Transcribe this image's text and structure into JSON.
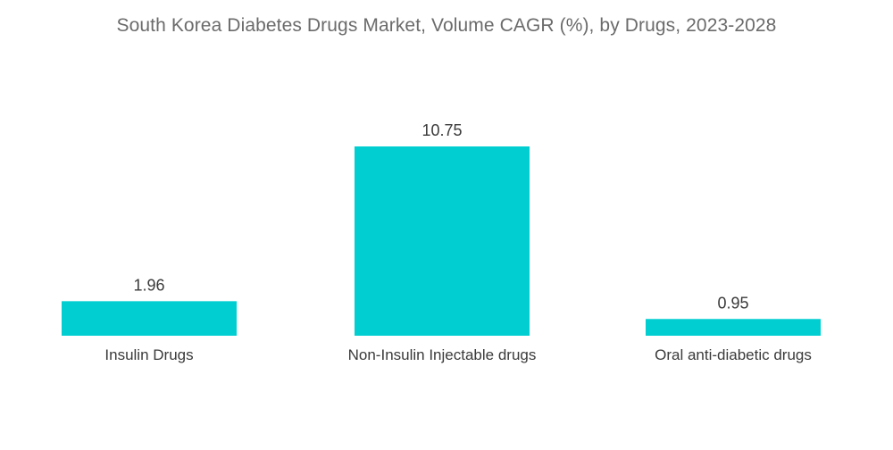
{
  "chart_data": {
    "type": "bar",
    "title": "South Korea Diabetes Drugs Market, Volume CAGR (%), by Drugs, 2023-2028",
    "categories": [
      "Insulin Drugs",
      "Non-Insulin Injectable drugs",
      "Oral anti-diabetic drugs"
    ],
    "values": [
      1.96,
      10.75,
      0.95
    ],
    "value_labels": [
      "1.96",
      "10.75",
      "0.95"
    ],
    "xlabel": "",
    "ylabel": "",
    "ylim": [
      0,
      10.75
    ],
    "grid": false,
    "legend": "none",
    "bar_color": "#00CED1"
  }
}
